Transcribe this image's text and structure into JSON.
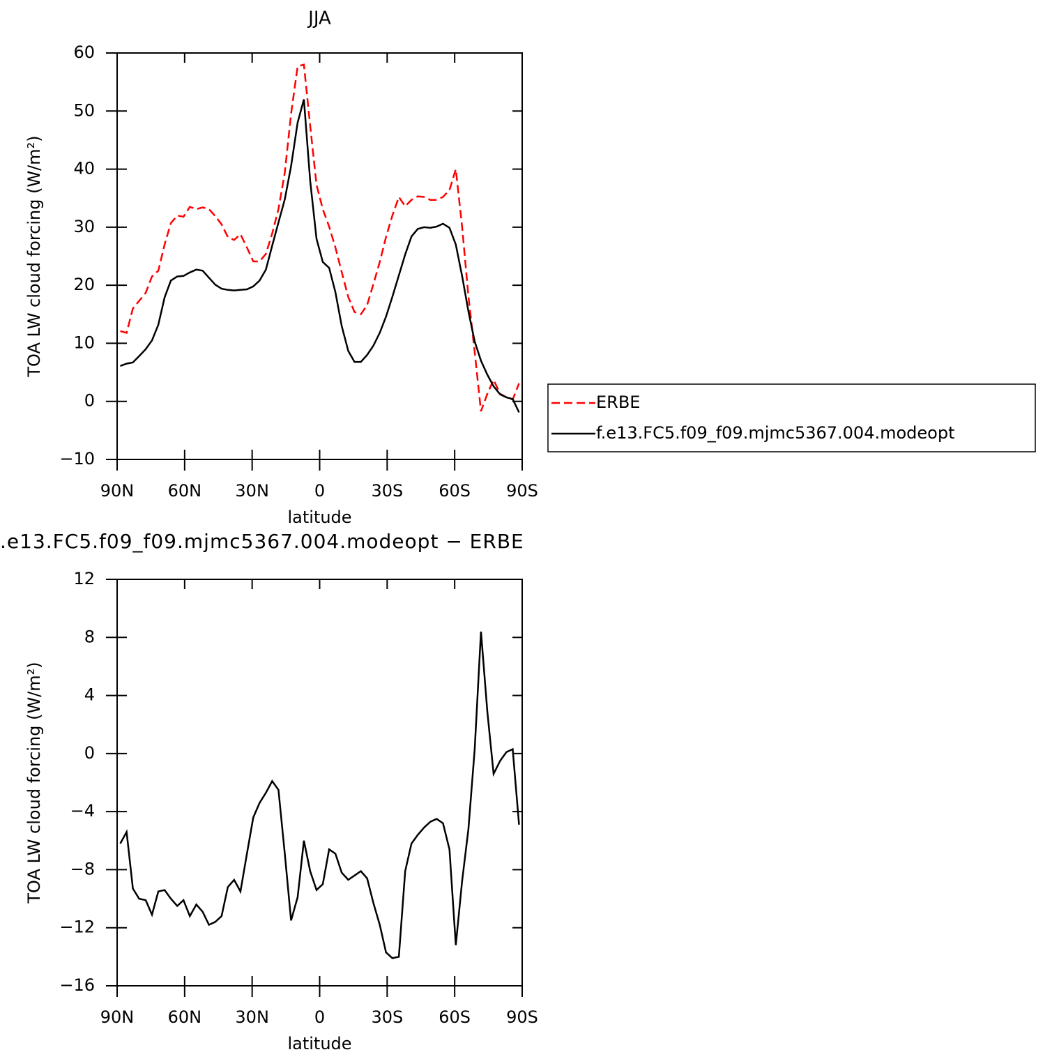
{
  "chart_data": [
    {
      "type": "line",
      "title": "JJA",
      "xlabel": "latitude",
      "ylabel": "TOA LW cloud forcing (W/m²)",
      "x": [
        88.6,
        85.8,
        83.0,
        80.2,
        77.3,
        74.5,
        71.7,
        68.9,
        66.1,
        63.3,
        60.5,
        57.7,
        54.8,
        52.0,
        49.2,
        46.4,
        43.6,
        40.8,
        38.0,
        35.2,
        32.3,
        29.5,
        26.7,
        23.9,
        21.1,
        18.3,
        15.5,
        12.7,
        9.8,
        7.0,
        4.2,
        1.4,
        -1.4,
        -4.2,
        -7.0,
        -9.8,
        -12.7,
        -15.5,
        -18.3,
        -21.1,
        -23.9,
        -26.7,
        -29.5,
        -32.3,
        -35.2,
        -38.0,
        -40.8,
        -43.6,
        -46.4,
        -49.2,
        -52.0,
        -54.8,
        -57.7,
        -60.5,
        -63.3,
        -66.1,
        -68.9,
        -71.7,
        -74.5,
        -77.3,
        -80.2,
        -83.0,
        -85.8,
        -88.6
      ],
      "series": [
        {
          "name": "ERBE",
          "color": "#ff0000",
          "linestyle": "dashed",
          "values": [
            12.1,
            11.8,
            16.0,
            17.3,
            18.7,
            21.5,
            22.5,
            27.0,
            30.7,
            32.0,
            31.8,
            33.5,
            33.1,
            33.4,
            33.1,
            31.9,
            30.5,
            28.3,
            27.8,
            28.8,
            26.5,
            24.1,
            24.1,
            25.4,
            28.9,
            33.1,
            39.4,
            49.5,
            57.7,
            58.0,
            47.5,
            37.3,
            33.1,
            30.1,
            26.5,
            22.3,
            18.0,
            15.4,
            15.0,
            16.6,
            20.2,
            24.0,
            28.3,
            32.0,
            35.2,
            33.6,
            34.7,
            35.3,
            35.2,
            34.7,
            34.7,
            35.2,
            36.4,
            40.0,
            30.1,
            18.1,
            8.5,
            -1.7,
            1.3,
            3.7,
            1.3,
            0.7,
            0.3,
            3.1
          ]
        },
        {
          "name": "f.e13.FC5.f09_f09.mjmc5367.004.modeopt",
          "color": "#000000",
          "linestyle": "solid",
          "values": [
            6.1,
            6.5,
            6.7,
            7.8,
            9.0,
            10.5,
            13.2,
            17.9,
            20.8,
            21.5,
            21.6,
            22.2,
            22.7,
            22.5,
            21.3,
            20.1,
            19.4,
            19.2,
            19.1,
            19.2,
            19.3,
            19.8,
            20.8,
            22.7,
            26.8,
            30.8,
            34.8,
            40.5,
            48.0,
            52.0,
            38.0,
            28.0,
            24.0,
            23.0,
            18.8,
            13.0,
            8.7,
            6.8,
            6.8,
            8.0,
            9.6,
            11.8,
            14.6,
            18.0,
            21.7,
            25.3,
            28.4,
            29.7,
            30.0,
            29.9,
            30.1,
            30.6,
            29.9,
            27.0,
            21.6,
            15.5,
            10.3,
            7.0,
            4.6,
            2.6,
            1.2,
            0.7,
            0.4,
            -1.9
          ]
        }
      ],
      "xlim": [
        90,
        -90
      ],
      "xticks": [
        {
          "value": 90,
          "label": "90N"
        },
        {
          "value": 60,
          "label": "60N"
        },
        {
          "value": 30,
          "label": "30N"
        },
        0,
        {
          "value": -30,
          "label": "30S"
        },
        {
          "value": -60,
          "label": "60S"
        },
        {
          "value": -90,
          "label": "90S"
        }
      ],
      "ylim": [
        -10,
        60
      ],
      "yticks": [
        {
          "value": -10,
          "label": "−10"
        },
        0,
        10,
        20,
        30,
        40,
        50,
        60
      ],
      "legend": "outside-right"
    },
    {
      "type": "line",
      "title": ".e13.FC5.f09_f09.mjmc5367.004.modeopt − ERBE",
      "xlabel": "latitude",
      "ylabel": "TOA LW cloud forcing (W/m²)",
      "x": [
        88.6,
        85.8,
        83.0,
        80.2,
        77.3,
        74.5,
        71.7,
        68.9,
        66.1,
        63.3,
        60.5,
        57.7,
        54.8,
        52.0,
        49.2,
        46.4,
        43.6,
        40.8,
        38.0,
        35.2,
        32.3,
        29.5,
        26.7,
        23.9,
        21.1,
        18.3,
        15.5,
        12.7,
        9.8,
        7.0,
        4.2,
        1.4,
        -1.4,
        -4.2,
        -7.0,
        -9.8,
        -12.7,
        -15.5,
        -18.3,
        -21.1,
        -23.9,
        -26.7,
        -29.5,
        -32.3,
        -35.2,
        -38.0,
        -40.8,
        -43.6,
        -46.4,
        -49.2,
        -52.0,
        -54.8,
        -57.7,
        -60.5,
        -63.3,
        -66.1,
        -68.9,
        -71.7,
        -74.5,
        -77.3,
        -80.2,
        -83.0,
        -85.8,
        -88.6
      ],
      "series": [
        {
          "color": "#000000",
          "linestyle": "solid",
          "values": [
            -6.2,
            -5.4,
            -9.3,
            -10.0,
            -10.1,
            -11.1,
            -9.5,
            -9.4,
            -10.0,
            -10.5,
            -10.1,
            -11.2,
            -10.4,
            -10.9,
            -11.8,
            -11.6,
            -11.2,
            -9.2,
            -8.7,
            -9.5,
            -6.9,
            -4.4,
            -3.4,
            -2.7,
            -1.9,
            -2.5,
            -6.9,
            -11.5,
            -9.9,
            -6.0,
            -8.1,
            -9.4,
            -9.0,
            -6.6,
            -6.9,
            -8.2,
            -8.7,
            -8.4,
            -8.1,
            -8.6,
            -10.3,
            -11.8,
            -13.7,
            -14.1,
            -14.0,
            -8.1,
            -6.2,
            -5.6,
            -5.1,
            -4.7,
            -4.5,
            -4.8,
            -6.6,
            -13.2,
            -8.8,
            -5.2,
            0.3,
            8.4,
            2.9,
            -1.4,
            -0.5,
            0.1,
            0.3,
            -4.9
          ]
        }
      ],
      "xlim": [
        90,
        -90
      ],
      "xticks": [
        {
          "value": 90,
          "label": "90N"
        },
        {
          "value": 60,
          "label": "60N"
        },
        {
          "value": 30,
          "label": "30N"
        },
        0,
        {
          "value": -30,
          "label": "30S"
        },
        {
          "value": -60,
          "label": "60S"
        },
        {
          "value": -90,
          "label": "90S"
        }
      ],
      "ylim": [
        -16,
        12
      ],
      "yticks": [
        {
          "value": -16,
          "label": "−16"
        },
        {
          "value": -12,
          "label": "−12"
        },
        {
          "value": -8,
          "label": "−8"
        },
        {
          "value": -4,
          "label": "−4"
        },
        0,
        4,
        8,
        12
      ]
    }
  ]
}
